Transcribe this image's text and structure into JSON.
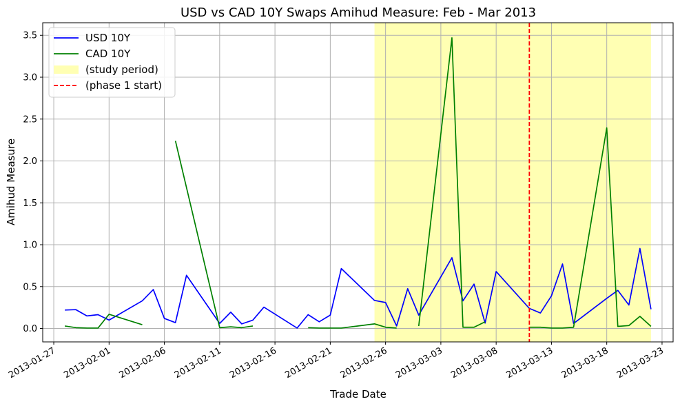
{
  "chart_data": {
    "type": "line",
    "title": "USD vs CAD 10Y Swaps Amihud Measure: Feb - Mar 2013",
    "xlabel": "Trade Date",
    "ylabel": "Amihud Measure",
    "xlim": [
      "2013-01-26",
      "2013-03-24"
    ],
    "ylim": [
      -0.16,
      3.65
    ],
    "x_ticks": [
      "2013-01-27",
      "2013-02-01",
      "2013-02-06",
      "2013-02-11",
      "2013-02-16",
      "2013-02-21",
      "2013-02-26",
      "2013-03-03",
      "2013-03-08",
      "2013-03-13",
      "2013-03-18",
      "2013-03-23"
    ],
    "y_ticks": [
      "0.0",
      "0.5",
      "1.0",
      "1.5",
      "2.0",
      "2.5",
      "3.0",
      "3.5"
    ],
    "grid": true,
    "legend_position": "top-left",
    "shaded_region": {
      "label": "(study period)",
      "start": "2013-02-25",
      "end": "2013-03-22",
      "color": "#ffffb3"
    },
    "vertical_line": {
      "label": "(phase 1 start)",
      "x": "2013-03-11",
      "color": "#ff0000",
      "style": "dashed"
    },
    "series": [
      {
        "name": "USD 10Y",
        "color": "#0000ff",
        "points": [
          [
            "2013-01-28",
            0.22
          ],
          [
            "2013-01-29",
            0.225
          ],
          [
            "2013-01-30",
            0.15
          ],
          [
            "2013-01-31",
            0.165
          ],
          [
            "2013-02-01",
            0.1
          ],
          [
            "2013-02-04",
            0.33
          ],
          [
            "2013-02-05",
            0.465
          ],
          [
            "2013-02-06",
            0.12
          ],
          [
            "2013-02-07",
            0.07
          ],
          [
            "2013-02-08",
            0.635
          ],
          [
            "2013-02-11",
            0.06
          ],
          [
            "2013-02-12",
            0.195
          ],
          [
            "2013-02-13",
            0.055
          ],
          [
            "2013-02-14",
            0.1
          ],
          [
            "2013-02-15",
            0.255
          ],
          [
            "2013-02-18",
            0.005
          ],
          [
            "2013-02-19",
            0.165
          ],
          [
            "2013-02-20",
            0.08
          ],
          [
            "2013-02-21",
            0.16
          ],
          [
            "2013-02-22",
            0.715
          ],
          [
            "2013-02-25",
            0.335
          ],
          [
            "2013-02-26",
            0.31
          ],
          [
            "2013-02-27",
            0.03
          ],
          [
            "2013-02-28",
            0.475
          ],
          [
            "2013-03-01",
            0.16
          ],
          [
            "2013-03-04",
            0.845
          ],
          [
            "2013-03-05",
            0.33
          ],
          [
            "2013-03-06",
            0.53
          ],
          [
            "2013-03-07",
            0.065
          ],
          [
            "2013-03-08",
            0.68
          ],
          [
            "2013-03-11",
            0.24
          ],
          [
            "2013-03-12",
            0.185
          ],
          [
            "2013-03-13",
            0.39
          ],
          [
            "2013-03-14",
            0.77
          ],
          [
            "2013-03-15",
            0.06
          ],
          [
            "2013-03-18",
            0.36
          ],
          [
            "2013-03-19",
            0.455
          ],
          [
            "2013-03-20",
            0.28
          ],
          [
            "2013-03-21",
            0.955
          ],
          [
            "2013-03-22",
            0.23
          ]
        ]
      },
      {
        "name": "CAD 10Y",
        "color": "#008000",
        "segments": [
          [
            [
              "2013-01-28",
              0.03
            ],
            [
              "2013-01-29",
              0.01
            ],
            [
              "2013-01-30",
              0.005
            ],
            [
              "2013-01-31",
              0.005
            ],
            [
              "2013-02-01",
              0.17
            ],
            [
              "2013-02-04",
              0.045
            ]
          ],
          [
            [
              "2013-02-07",
              2.24
            ],
            [
              "2013-02-11",
              0.01
            ],
            [
              "2013-02-12",
              0.02
            ],
            [
              "2013-02-13",
              0.01
            ],
            [
              "2013-02-14",
              0.03
            ]
          ],
          [
            [
              "2013-02-19",
              0.01
            ],
            [
              "2013-02-20",
              0.005
            ],
            [
              "2013-02-21",
              0.005
            ],
            [
              "2013-02-22",
              0.005
            ],
            [
              "2013-02-25",
              0.055
            ],
            [
              "2013-02-26",
              0.015
            ],
            [
              "2013-02-27",
              0.005
            ]
          ],
          [
            [
              "2013-03-01",
              0.03
            ],
            [
              "2013-03-04",
              3.47
            ],
            [
              "2013-03-05",
              0.015
            ],
            [
              "2013-03-06",
              0.015
            ],
            [
              "2013-03-07",
              0.08
            ]
          ],
          [
            [
              "2013-03-11",
              0.015
            ],
            [
              "2013-03-12",
              0.015
            ],
            [
              "2013-03-13",
              0.005
            ],
            [
              "2013-03-14",
              0.005
            ],
            [
              "2013-03-15",
              0.015
            ],
            [
              "2013-03-18",
              2.395
            ],
            [
              "2013-03-19",
              0.025
            ],
            [
              "2013-03-20",
              0.035
            ],
            [
              "2013-03-21",
              0.145
            ],
            [
              "2013-03-22",
              0.025
            ]
          ]
        ]
      }
    ]
  }
}
